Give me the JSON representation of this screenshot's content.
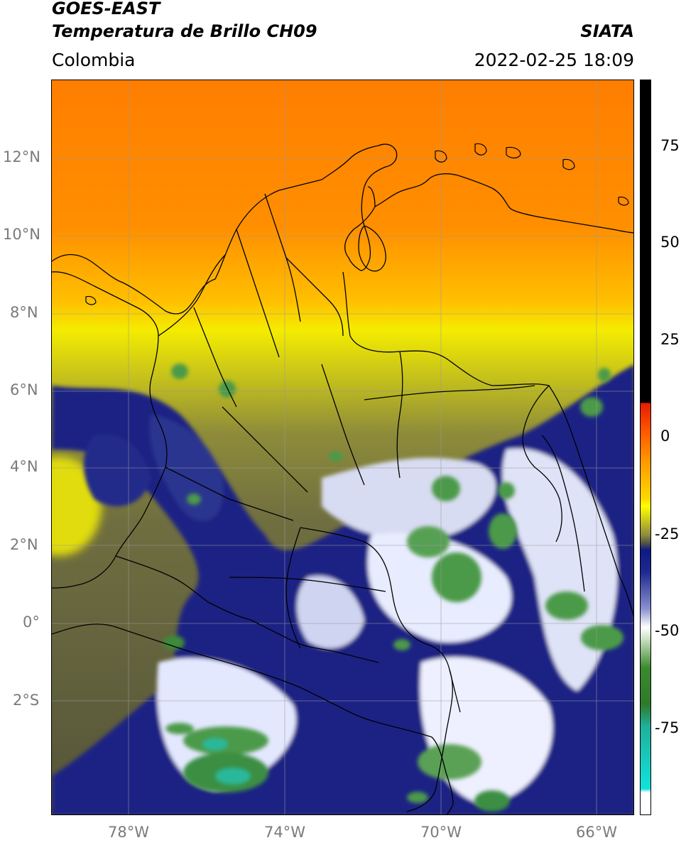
{
  "header": {
    "title_line1": "GOES-EAST",
    "title_line2": "Temperatura de Brillo CH09",
    "region": "Colombia",
    "brand": "SIATA",
    "timestamp": "2022-02-25 18:09"
  },
  "axes": {
    "lat_ticks": [
      "12°N",
      "10°N",
      "8°N",
      "6°N",
      "4°N",
      "2°N",
      "0°",
      "2°S"
    ],
    "lon_ticks": [
      "78°W",
      "74°W",
      "70°W",
      "66°W"
    ],
    "tick_color": "#7a7a7a"
  },
  "colorbar": {
    "ticks": [
      "75",
      "50",
      "25",
      "0",
      "-25",
      "-50",
      "-75"
    ],
    "colors": {
      "black": "#000000",
      "red": "#e81b00",
      "orange": "#ff8c00",
      "yellow": "#ffff00",
      "olive": "#6b6b2d",
      "navy": "#0e1a85",
      "white": "#ffffff",
      "green": "#3b8a2e",
      "cyan": "#12e0d8"
    }
  },
  "map": {
    "colors": {
      "orange": "#ff8a00",
      "yellow": "#f0e600",
      "olive": "#8a8a3a",
      "dark_olive": "#55553a",
      "navy": "#141f85",
      "white": "#f2f4ff",
      "green": "#3d8c3a",
      "border": "#000000",
      "grid": "#9a9a9a"
    }
  }
}
